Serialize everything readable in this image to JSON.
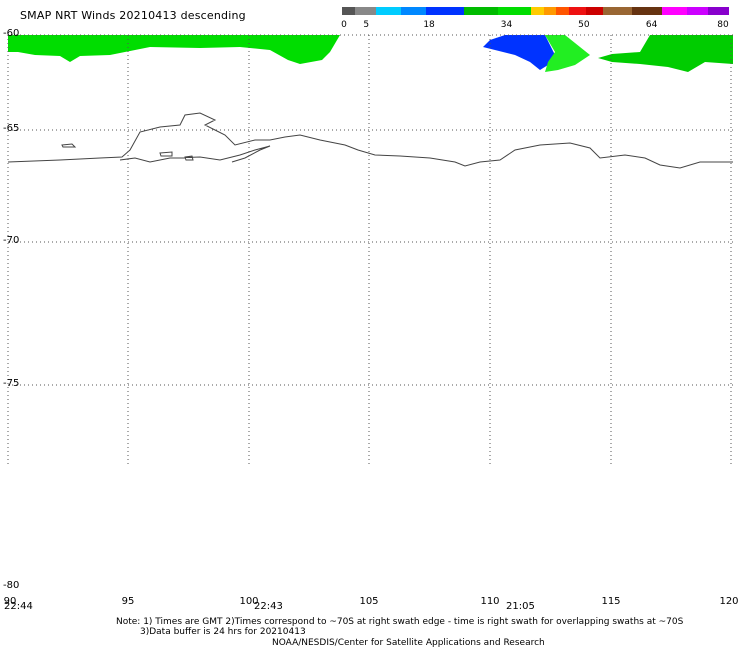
{
  "header": {
    "title": "SMAP NRT Winds  20210413 descending"
  },
  "colorbar": {
    "segments": [
      "#555555",
      "#888888",
      "#00ccff",
      "#0088ff",
      "#0033ff",
      "#00bb00",
      "#00dd00",
      "#ffcc00",
      "#ff9900",
      "#ff5500",
      "#ee1111",
      "#cc0000",
      "#996633",
      "#663311",
      "#ff00ff",
      "#cc00ff",
      "#8800cc"
    ],
    "labels": [
      {
        "text": "0",
        "value": 0
      },
      {
        "text": "5",
        "value": 5
      },
      {
        "text": "18",
        "value": 18
      },
      {
        "text": "34",
        "value": 34
      },
      {
        "text": "50",
        "value": 50
      },
      {
        "text": "64",
        "value": 64
      },
      {
        "text": "80",
        "value": 80
      }
    ]
  },
  "axes": {
    "lat_ticks": [
      "-60",
      "-65",
      "-70",
      "-75",
      "-80"
    ],
    "lon_ticks": [
      "90",
      "95",
      "100",
      "105",
      "110",
      "115",
      "120"
    ],
    "time_labels": [
      "22:44",
      "22:43",
      "21:05"
    ]
  },
  "notes": {
    "line1": "Note: 1) Times are GMT 2)Times correspond to ~70S at right swath edge - time is right swath for overlapping swaths at ~70S",
    "line2": "3)Data buffer is 24 hrs for 20210413",
    "line3": "NOAA/NESDIS/Center for Satellite Applications and Research"
  },
  "colors": {
    "wind_green": "#00dd00",
    "wind_bright_green": "#22ee22",
    "wind_blue": "#0033ff",
    "coastline": "#444444",
    "grid": "#555555"
  }
}
